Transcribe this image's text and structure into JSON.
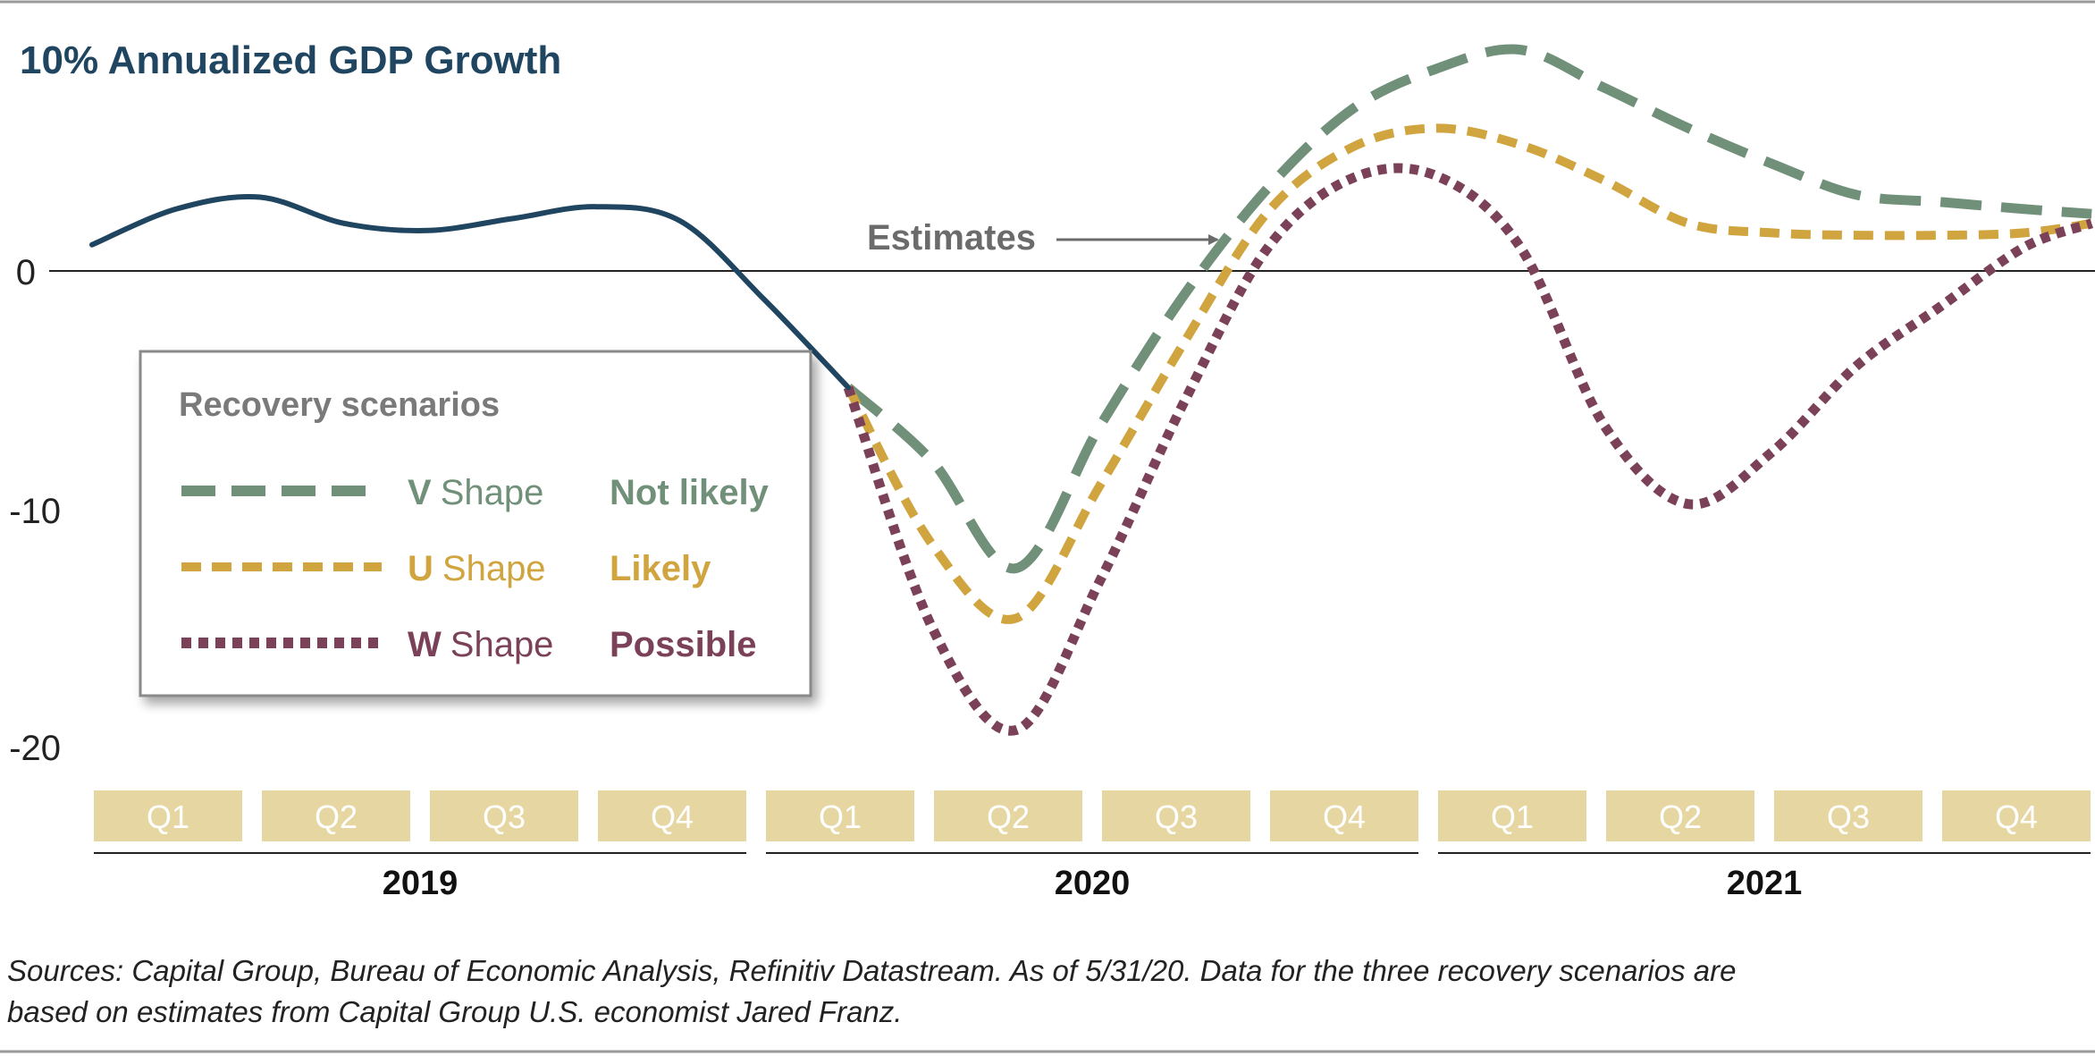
{
  "colors": {
    "title": "#1f4560",
    "history": "#1f4560",
    "v_shape": "#71907a",
    "u_shape": "#d0a43e",
    "w_shape": "#7b4158",
    "quarter_box": "#e6d7a2",
    "annotation": "#6b6b6b"
  },
  "chart_data": {
    "type": "line",
    "title": "10% Annualized GDP Growth",
    "yticks": [
      0,
      -10,
      -20
    ],
    "ylim": [
      -20,
      10
    ],
    "quarters": [
      "Q1",
      "Q2",
      "Q3",
      "Q4",
      "Q1",
      "Q2",
      "Q3",
      "Q4",
      "Q1",
      "Q2",
      "Q3",
      "Q4"
    ],
    "years": [
      "2019",
      "2020",
      "2021"
    ],
    "annotation": "Estimates",
    "grid": false,
    "series": [
      {
        "key": "history",
        "style": "solid",
        "x": [
          0.0,
          0.5,
          1.0,
          1.5,
          2.0,
          2.5,
          3.0,
          3.5,
          4.0,
          4.5
        ],
        "y": [
          1.1,
          2.6,
          3.1,
          2.0,
          1.7,
          2.2,
          2.7,
          2.1,
          -1.2,
          -4.9
        ]
      },
      {
        "key": "v_shape",
        "name": "Shape",
        "letter": "V",
        "likelihood": "Not likely",
        "style": "dashed",
        "x": [
          4.5,
          5.0,
          5.5,
          6.0,
          6.5,
          7.0,
          7.5,
          8.0,
          8.5,
          9.0,
          9.5,
          10.0,
          10.5,
          11.0,
          11.5,
          11.9
        ],
        "y": [
          -4.9,
          -8.0,
          -12.5,
          -6.5,
          -1.0,
          3.5,
          6.8,
          8.5,
          9.3,
          7.7,
          6.0,
          4.5,
          3.2,
          2.9,
          2.6,
          2.4
        ]
      },
      {
        "key": "u_shape",
        "name": "Shape",
        "letter": "U",
        "likelihood": "Likely",
        "style": "dashed",
        "x": [
          4.5,
          5.0,
          5.5,
          6.0,
          6.5,
          7.0,
          7.5,
          8.0,
          8.5,
          9.0,
          9.5,
          10.0,
          10.5,
          11.0,
          11.5,
          11.9
        ],
        "y": [
          -4.9,
          -11.5,
          -14.6,
          -9.0,
          -3.0,
          2.5,
          5.2,
          6.0,
          5.3,
          3.8,
          2.0,
          1.6,
          1.5,
          1.5,
          1.6,
          2.0
        ]
      },
      {
        "key": "w_shape",
        "name": "Shape",
        "letter": "W",
        "likelihood": "Possible",
        "style": "dotted",
        "x": [
          4.5,
          5.0,
          5.5,
          6.0,
          6.5,
          7.0,
          7.5,
          8.0,
          8.5,
          9.0,
          9.5,
          10.0,
          10.5,
          11.0,
          11.5,
          11.9
        ],
        "y": [
          -4.9,
          -15.0,
          -19.3,
          -13.0,
          -5.5,
          1.0,
          3.9,
          4.0,
          1.0,
          -6.5,
          -9.8,
          -7.6,
          -4.0,
          -1.5,
          1.0,
          2.0
        ]
      }
    ],
    "legend_title": "Recovery scenarios",
    "legend_position": "left-center"
  },
  "footer": {
    "line1": "Sources: Capital Group, Bureau of Economic Analysis, Refinitiv Datastream. As of 5/31/20. Data for the three recovery scenarios are",
    "line2": "based on estimates from Capital Group U.S. economist Jared Franz."
  }
}
